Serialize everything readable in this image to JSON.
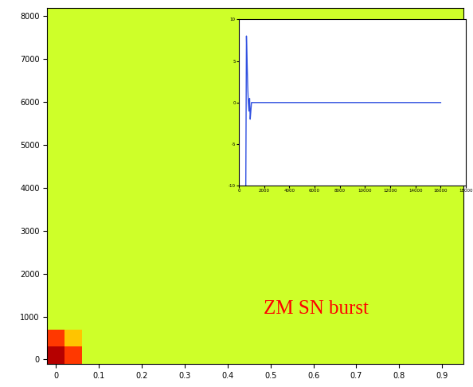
{
  "chart_data": [
    {
      "type": "heatmap",
      "annotations": [
        "ZM SN burst"
      ],
      "xlim": [
        -0.02,
        0.95
      ],
      "ylim": [
        -100,
        8200
      ],
      "xticks": [
        0,
        0.1,
        0.2,
        0.3,
        0.4,
        0.5,
        0.6,
        0.7,
        0.8,
        0.9
      ],
      "yticks": [
        0,
        1000,
        2000,
        3000,
        4000,
        5000,
        6000,
        7000,
        8000
      ],
      "cells": {
        "x_edges": [
          -0.02,
          0.02,
          0.06,
          0.95
        ],
        "y_edges": [
          -100,
          300,
          700,
          8200
        ],
        "values": [
          [
            0.95,
            0.85,
            0.6
          ],
          [
            0.85,
            0.7,
            0.6
          ],
          [
            0.6,
            0.6,
            0.6
          ]
        ],
        "range": [
          0,
          1
        ]
      }
    },
    {
      "type": "line",
      "x": [
        550,
        550,
        600,
        650,
        700,
        750,
        800,
        850,
        900,
        950,
        1000,
        16000
      ],
      "series": [
        {
          "color": "#3050e0",
          "values": [
            -10,
            -10,
            8,
            5,
            2,
            0,
            -1,
            0.5,
            -2,
            -1,
            0,
            0
          ]
        }
      ],
      "xlim": [
        0,
        18000
      ],
      "ylim": [
        -10,
        10
      ],
      "xticks": [
        0,
        2000,
        4000,
        6000,
        8000,
        10000,
        12000,
        14000,
        16000,
        18000
      ],
      "yticks": [
        -10,
        -5,
        0,
        5,
        10
      ]
    }
  ]
}
